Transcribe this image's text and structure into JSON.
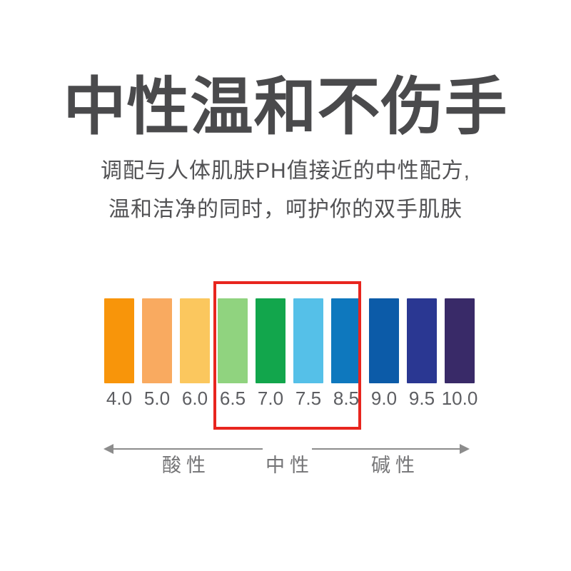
{
  "header": {
    "title": "中性温和不伤手",
    "subtitle_line1": "调配与人体肌肤PH值接近的中性配方,",
    "subtitle_line2": "温和洁净的同时，呵护你的双手肌肤"
  },
  "chart_data": {
    "type": "bar",
    "description_visible": "pH color scale strips, equal height, color-coded",
    "categories": [
      "4.0",
      "5.0",
      "6.0",
      "6.5",
      "7.0",
      "7.5",
      "8.5",
      "9.0",
      "9.5",
      "10.0"
    ],
    "bar_colors": [
      "#F8950A",
      "#F9AA60",
      "#FBC75E",
      "#90D37F",
      "#12A64C",
      "#55C0E8",
      "#0E78BE",
      "#0C5BA8",
      "#2A3792",
      "#392A68"
    ],
    "highlight": {
      "categories": [
        "6.5",
        "7.0",
        "7.5",
        "8.5"
      ],
      "box_color": "#E8251E"
    },
    "axis": {
      "acidic_label": "酸性",
      "neutral_label": "中性",
      "alkaline_label": "碱性",
      "arrow_color": "#8C8C8C"
    }
  }
}
